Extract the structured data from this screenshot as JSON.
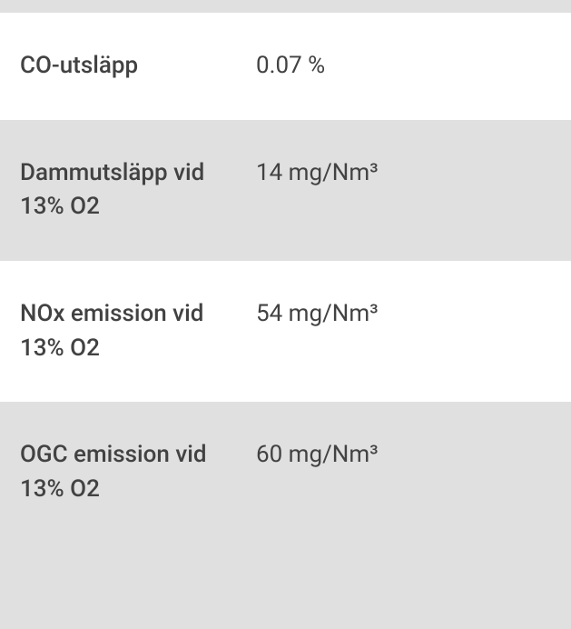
{
  "table": {
    "background_colors": {
      "white": "#ffffff",
      "gray": "#e0e0e0"
    },
    "text_color": "#424242",
    "font_size": 26,
    "label_weight": 500,
    "value_weight": 400,
    "rows": [
      {
        "label": "CO-utsläpp",
        "value": "0.07 %",
        "bg": "white"
      },
      {
        "label": "Dammutsläpp vid 13% O2",
        "value": "14 mg/Nm³",
        "bg": "gray"
      },
      {
        "label": "NOx emission vid 13% O2",
        "value": "54 mg/Nm³",
        "bg": "white"
      },
      {
        "label": "OGC emission vid 13% O2",
        "value": "60 mg/Nm³",
        "bg": "gray"
      }
    ]
  }
}
